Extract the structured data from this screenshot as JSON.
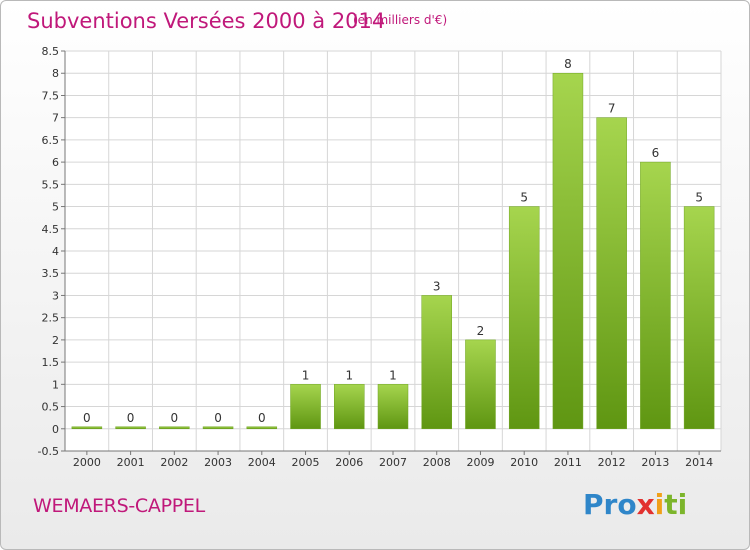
{
  "header": {
    "title": "Subventions Versées 2000 à 2014",
    "unit_note": "(en milliers d'€)"
  },
  "footer": {
    "commune": "WEMAERS-CAPPEL",
    "logo": "Proxiti"
  },
  "colors": {
    "title": "#c0187a",
    "bar_light": "#a6d54e",
    "bar_dark": "#5f9612",
    "grid": "#d6d6d6"
  },
  "chart_data": {
    "type": "bar",
    "categories": [
      "2000",
      "2001",
      "2002",
      "2003",
      "2004",
      "2005",
      "2006",
      "2007",
      "2008",
      "2009",
      "2010",
      "2011",
      "2012",
      "2013",
      "2014"
    ],
    "values": [
      0,
      0,
      0,
      0,
      0,
      1,
      1,
      1,
      3,
      2,
      5,
      8,
      7,
      6,
      5
    ],
    "data_labels": [
      "0",
      "0",
      "0",
      "0",
      "0",
      "1",
      "1",
      "1",
      "3",
      "2",
      "5",
      "8",
      "7",
      "6",
      "5"
    ],
    "yticks": [
      "-0.5",
      "0",
      "0.5",
      "1",
      "1.5",
      "2",
      "2.5",
      "3",
      "3.5",
      "4",
      "4.5",
      "5",
      "5.5",
      "6",
      "6.5",
      "7",
      "7.5",
      "8",
      "8.5"
    ],
    "ylim": [
      -0.5,
      8.5
    ],
    "grid": true,
    "legend": "none"
  }
}
